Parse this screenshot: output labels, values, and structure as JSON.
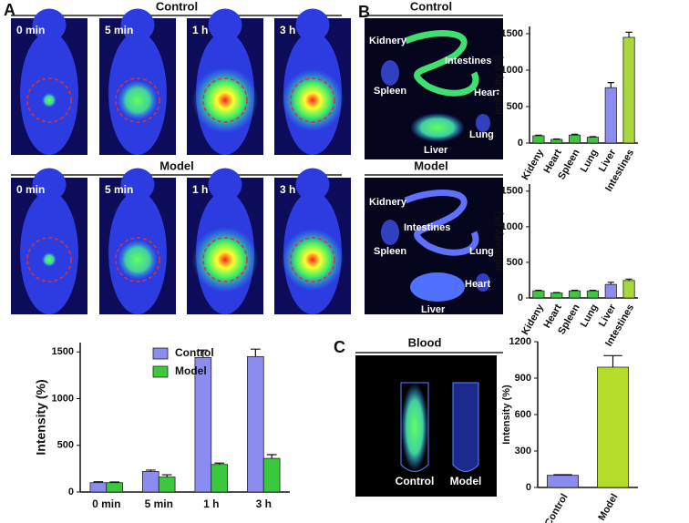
{
  "panel_labels": [
    "A",
    "B",
    "C"
  ],
  "panel_a": {
    "rows": [
      {
        "title": "Control",
        "frames": [
          "0 min",
          "5 min",
          "1 h",
          "3 h"
        ]
      },
      {
        "title": "Model",
        "frames": [
          "0 min",
          "5 min",
          "1 h",
          "3 h"
        ]
      }
    ]
  },
  "panel_b": {
    "images": [
      {
        "title": "Control",
        "organs": [
          "Kidnery",
          "Intestines",
          "Spleen",
          "Heart",
          "Liver",
          "Lung"
        ]
      },
      {
        "title": "Model",
        "organs": [
          "Kidnery",
          "Intestines",
          "Spleen",
          "Lung",
          "Heart",
          "Liver"
        ]
      }
    ]
  },
  "panel_c": {
    "title": "Blood",
    "tubes": [
      "Control",
      "Model"
    ]
  },
  "chart_data": [
    {
      "type": "bar",
      "ylabel": "Intensity (%)",
      "categories": [
        "0 min",
        "5 min",
        "1 h",
        "3 h"
      ],
      "series": [
        {
          "name": "Control",
          "color": "#8c8cf0",
          "values": [
            100,
            220,
            1440,
            1450
          ],
          "errors": [
            10,
            15,
            80,
            80
          ]
        },
        {
          "name": "Model",
          "color": "#3cc83c",
          "values": [
            100,
            160,
            295,
            360
          ],
          "errors": [
            8,
            25,
            15,
            40
          ]
        }
      ],
      "ylim": [
        0,
        1600
      ],
      "yticks": [
        0,
        500,
        1000,
        1500
      ],
      "legend": "upper left"
    },
    {
      "type": "bar",
      "ylabel": "Intensity (%)",
      "categories": [
        "Kideny",
        "Heart",
        "Spleen",
        "Lung",
        "Liver",
        "Intestines"
      ],
      "values": [
        100,
        50,
        110,
        80,
        760,
        1450
      ],
      "errors": [
        8,
        5,
        10,
        8,
        70,
        70
      ],
      "colors": [
        "#3cc83c",
        "#3cc83c",
        "#3cc83c",
        "#3cc83c",
        "#8c8cf0",
        "#a8d83c"
      ],
      "ylim": [
        0,
        1600
      ],
      "yticks": [
        0,
        500,
        1000,
        1500
      ]
    },
    {
      "type": "bar",
      "ylabel": "Intensity (%)",
      "categories": [
        "Kideny",
        "Heart",
        "Spleen",
        "Lung",
        "Liver",
        "Intestines"
      ],
      "values": [
        100,
        70,
        100,
        100,
        190,
        245
      ],
      "errors": [
        8,
        5,
        8,
        8,
        30,
        20
      ],
      "colors": [
        "#3cc83c",
        "#3cc83c",
        "#3cc83c",
        "#3cc83c",
        "#8c8cf0",
        "#a8d83c"
      ],
      "ylim": [
        0,
        1600
      ],
      "yticks": [
        0,
        500,
        1000,
        1500
      ]
    },
    {
      "type": "bar",
      "ylabel": "Intensity (%)",
      "categories": [
        "Control",
        "Model"
      ],
      "values": [
        100,
        990
      ],
      "errors": [
        5,
        95
      ],
      "colors": [
        "#8c8cf0",
        "#b4dc28"
      ],
      "ylim": [
        0,
        1200
      ],
      "yticks": [
        0,
        300,
        600,
        900,
        1200
      ]
    }
  ]
}
